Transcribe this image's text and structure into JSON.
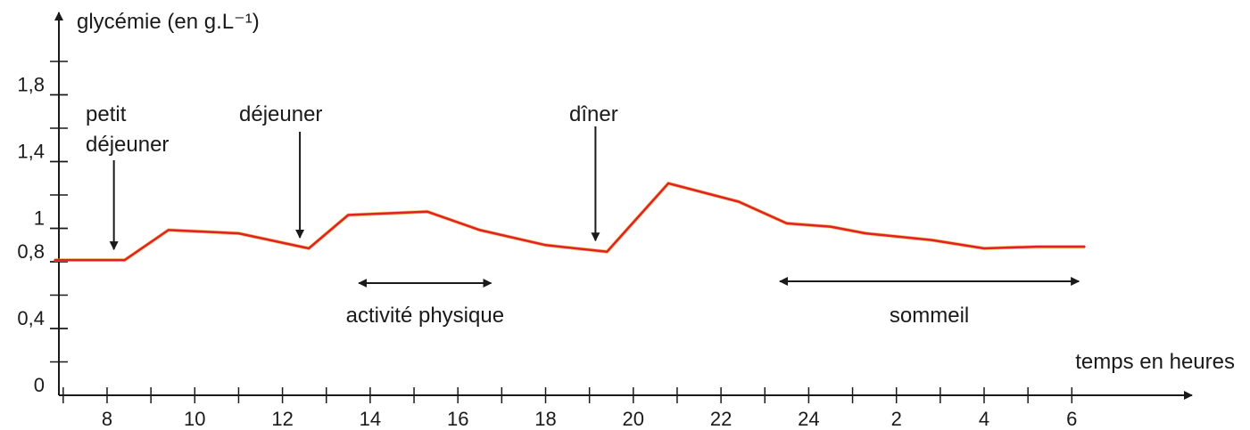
{
  "chart_data": {
    "type": "line",
    "ylabel": "glycémie (en g.L⁻¹)",
    "xlabel": "temps en heures",
    "x_ticks": [
      {
        "t": 8,
        "label": "8"
      },
      {
        "t": 10,
        "label": "10"
      },
      {
        "t": 12,
        "label": "12"
      },
      {
        "t": 14,
        "label": "14"
      },
      {
        "t": 16,
        "label": "16"
      },
      {
        "t": 18,
        "label": "18"
      },
      {
        "t": 20,
        "label": "20"
      },
      {
        "t": 22,
        "label": "22"
      },
      {
        "t": 24,
        "label": "24"
      },
      {
        "t": 26,
        "label": "2"
      },
      {
        "t": 28,
        "label": "4"
      },
      {
        "t": 30,
        "label": "6"
      }
    ],
    "y_ticks": [
      {
        "v": 0,
        "label": "0"
      },
      {
        "v": 0.4,
        "label": "0,4"
      },
      {
        "v": 0.8,
        "label": "0,8"
      },
      {
        "v": 1.0,
        "label": "1"
      },
      {
        "v": 1.4,
        "label": "1,4"
      },
      {
        "v": 1.8,
        "label": "1,8"
      }
    ],
    "xlim": [
      6.5,
      31.2
    ],
    "ylim": [
      0,
      2.2
    ],
    "series": [
      {
        "color": "#e0202a",
        "points": [
          [
            6.8,
            0.81
          ],
          [
            8.4,
            0.81
          ],
          [
            9.4,
            0.99
          ],
          [
            11.0,
            0.97
          ],
          [
            12.6,
            0.88
          ],
          [
            13.5,
            1.08
          ],
          [
            15.3,
            1.1
          ],
          [
            16.5,
            0.99
          ],
          [
            18.0,
            0.9
          ],
          [
            19.4,
            0.86
          ],
          [
            20.8,
            1.27
          ],
          [
            22.4,
            1.16
          ],
          [
            23.5,
            1.03
          ],
          [
            24.5,
            1.01
          ],
          [
            25.3,
            0.97
          ],
          [
            26.8,
            0.93
          ],
          [
            28.0,
            0.88
          ],
          [
            29.2,
            0.89
          ],
          [
            30.3,
            0.89
          ]
        ]
      }
    ],
    "annotations": [
      {
        "key": "petit-dejeuner",
        "lines": [
          "petit",
          "déjeuner"
        ],
        "t": 8.4
      },
      {
        "key": "dejeuner",
        "lines": [
          "déjeuner"
        ],
        "t": 12.6
      },
      {
        "key": "diner",
        "lines": [
          "dîner"
        ],
        "t": 19.3
      }
    ],
    "periods": [
      {
        "key": "activite-physique",
        "label": "activité physique",
        "from": 13.7,
        "to": 16.8
      },
      {
        "key": "sommeil",
        "label": "sommeil",
        "from": 23.3,
        "to": 30.2
      }
    ],
    "colors": {
      "axis": "#1a1a1a",
      "curve": "#e0202a"
    }
  }
}
